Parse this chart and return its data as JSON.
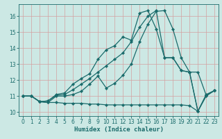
{
  "xlabel": "Humidex (Indice chaleur)",
  "bg_color": "#cce8e4",
  "grid_color": "#d4a0a0",
  "line_color": "#1a6b6b",
  "xlim": [
    -0.5,
    23.5
  ],
  "ylim": [
    9.75,
    16.75
  ],
  "xticks": [
    0,
    1,
    2,
    3,
    4,
    5,
    6,
    7,
    8,
    9,
    10,
    11,
    12,
    13,
    14,
    15,
    16,
    17,
    18,
    19,
    20,
    21,
    22,
    23
  ],
  "yticks": [
    10,
    11,
    12,
    13,
    14,
    15,
    16
  ],
  "line1_x": [
    0,
    1,
    2,
    3,
    4,
    5,
    6,
    7,
    8,
    9,
    10,
    11,
    12,
    13,
    14,
    15,
    16,
    17,
    18,
    19,
    20,
    21,
    22,
    23
  ],
  "line1_y": [
    11.0,
    11.0,
    10.65,
    10.6,
    10.6,
    10.55,
    10.55,
    10.55,
    10.5,
    10.5,
    10.45,
    10.45,
    10.45,
    10.45,
    10.45,
    10.45,
    10.45,
    10.45,
    10.45,
    10.45,
    10.4,
    10.05,
    11.05,
    11.35
  ],
  "line2_x": [
    0,
    1,
    2,
    3,
    4,
    5,
    6,
    7,
    8,
    9,
    10,
    11,
    12,
    13,
    14,
    15,
    16,
    17,
    18,
    19,
    20,
    21,
    22,
    23
  ],
  "line2_y": [
    11.0,
    11.0,
    10.65,
    10.6,
    11.0,
    11.0,
    11.1,
    11.3,
    11.75,
    12.25,
    11.5,
    11.8,
    12.3,
    13.0,
    14.4,
    15.5,
    16.3,
    16.35,
    15.2,
    13.4,
    12.5,
    12.5,
    11.05,
    11.35
  ],
  "line3_x": [
    0,
    1,
    2,
    3,
    4,
    5,
    6,
    7,
    8,
    9,
    10,
    11,
    12,
    13,
    14,
    15,
    16,
    17,
    18,
    19,
    20,
    21,
    22,
    23
  ],
  "line3_y": [
    11.0,
    11.0,
    10.65,
    10.7,
    11.1,
    11.2,
    11.75,
    12.1,
    12.4,
    13.3,
    13.9,
    14.15,
    14.7,
    14.5,
    16.2,
    16.35,
    15.2,
    13.4,
    13.4,
    12.6,
    12.5,
    10.05,
    11.0,
    11.35
  ],
  "line4_x": [
    0,
    1,
    2,
    3,
    4,
    5,
    6,
    7,
    8,
    9,
    10,
    11,
    12,
    13,
    14,
    15,
    16,
    17,
    18,
    19,
    20,
    21,
    22,
    23
  ],
  "line4_y": [
    11.0,
    11.0,
    10.65,
    10.7,
    11.05,
    11.1,
    11.4,
    11.75,
    12.1,
    12.5,
    12.9,
    13.3,
    13.7,
    14.4,
    15.3,
    16.0,
    16.35,
    13.4,
    13.4,
    12.6,
    12.5,
    10.05,
    11.1,
    11.35
  ]
}
